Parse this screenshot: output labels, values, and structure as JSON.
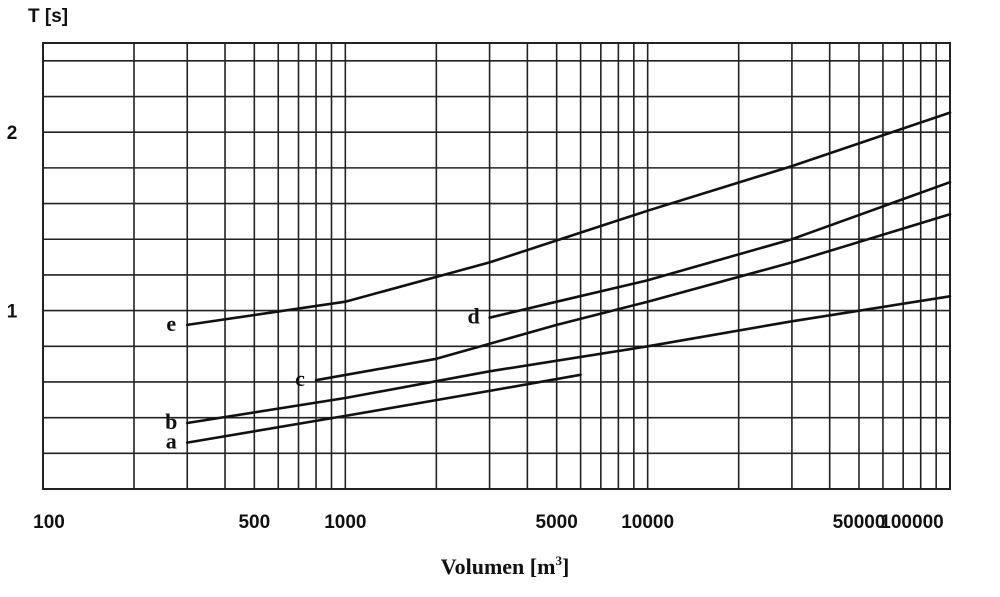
{
  "chart_data": {
    "type": "line",
    "title": "",
    "xlabel": "Volumen [m",
    "xlabel_superscript": "3",
    "xlabel_suffix": "]",
    "ylabel": "T [s]",
    "x_scale": "log",
    "xlim": [
      100,
      100000
    ],
    "ylim": [
      0,
      2.5
    ],
    "grid": true,
    "x_tick_labels": [
      {
        "value": 100,
        "label": "100"
      },
      {
        "value": 500,
        "label": "500"
      },
      {
        "value": 1000,
        "label": "1000"
      },
      {
        "value": 5000,
        "label": "5000"
      },
      {
        "value": 10000,
        "label": "10000"
      },
      {
        "value": 50000,
        "label": "50000"
      },
      {
        "value": 100000,
        "label": "100000"
      }
    ],
    "y_tick_labels": [
      {
        "value": 1,
        "label": "1"
      },
      {
        "value": 2,
        "label": "2"
      }
    ],
    "y_grid_step": 0.2,
    "series": [
      {
        "name": "a",
        "x": [
          300,
          1000,
          3000,
          6000
        ],
        "y": [
          0.26,
          0.41,
          0.55,
          0.64
        ]
      },
      {
        "name": "b",
        "x": [
          300,
          1000,
          3000,
          10000,
          30000,
          100000
        ],
        "y": [
          0.37,
          0.51,
          0.66,
          0.8,
          0.94,
          1.08
        ]
      },
      {
        "name": "c",
        "x": [
          800,
          2000,
          5000,
          10000,
          30000,
          100000
        ],
        "y": [
          0.61,
          0.73,
          0.92,
          1.05,
          1.27,
          1.54
        ]
      },
      {
        "name": "d",
        "x": [
          3000,
          5000,
          10000,
          30000,
          100000
        ],
        "y": [
          0.96,
          1.05,
          1.17,
          1.4,
          1.72
        ]
      },
      {
        "name": "e",
        "x": [
          300,
          1000,
          3000,
          10000,
          30000,
          100000
        ],
        "y": [
          0.92,
          1.05,
          1.27,
          1.56,
          1.81,
          2.11
        ]
      }
    ]
  }
}
